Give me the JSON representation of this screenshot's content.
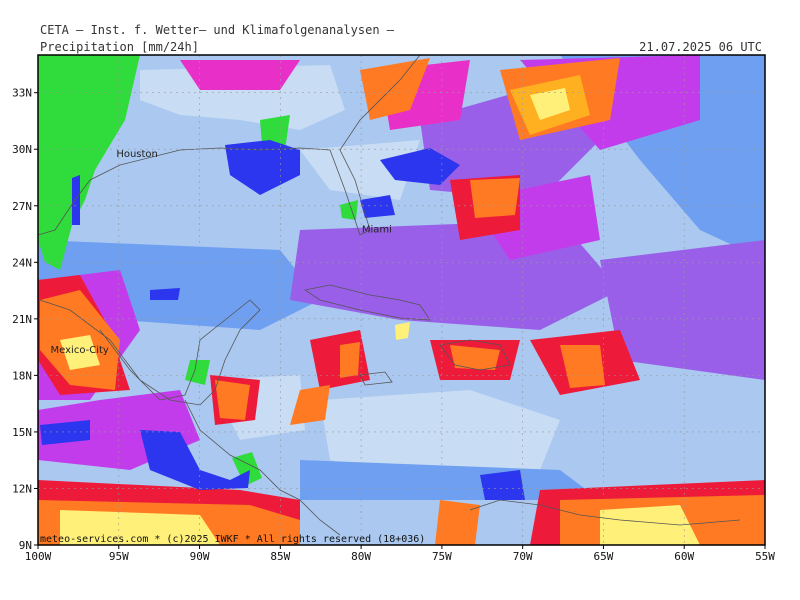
{
  "header": {
    "institute": "CETA — Inst. f. Wetter— und Klimafolgenanalysen —",
    "product": "Precipitation [mm/24h]",
    "valid_time": "21.07.2025 06 UTC"
  },
  "footer": {
    "credit": "meteo-services.com * (c)2025 IWKF * All rights reserved (18+036)"
  },
  "axes": {
    "lon_labels": [
      "100W",
      "95W",
      "90W",
      "85W",
      "80W",
      "75W",
      "70W",
      "65W",
      "60W",
      "55W"
    ],
    "lat_labels": [
      "33N",
      "30N",
      "27N",
      "24N",
      "21N",
      "18N",
      "15N",
      "12N",
      "9N"
    ]
  },
  "cities": [
    {
      "name": "Houston",
      "lon": -95.4,
      "lat": 29.8
    },
    {
      "name": "Miami",
      "lon": -80.2,
      "lat": 25.8
    },
    {
      "name": "Mexico-City",
      "lon": -99.1,
      "lat": 19.4
    }
  ],
  "colors": {
    "ocean": "#aac8f0",
    "light": "#c8dcf4",
    "blue1": "#6f9ff0",
    "blue2": "#4a7bea",
    "violet": "#9a5fe8",
    "purple": "#c33cec",
    "magenta": "#e830c8",
    "red": "#ee1a3a",
    "orange": "#ff7a22",
    "amber": "#ffb020",
    "yellow": "#fff07a",
    "paleyellow": "#fffcc0",
    "green": "#2fdc3c",
    "navy": "#2b36ee"
  }
}
